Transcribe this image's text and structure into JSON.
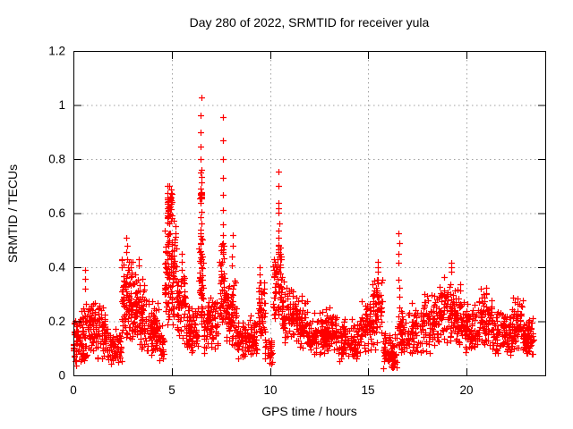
{
  "chart_data": {
    "type": "scatter",
    "title": "Day 280 of 2022, SRMTID for receiver yula",
    "xlabel": "GPS time / hours",
    "ylabel": "SRMTID / TECUs",
    "xlim": [
      0,
      24
    ],
    "ylim": [
      0,
      1.2
    ],
    "grid": true,
    "legend": "none",
    "marker": {
      "shape": "plus",
      "color": "#ff0000",
      "size": 7
    },
    "grid_color": "#a0a0a0",
    "axis_color": "#000000",
    "xticks": [
      {
        "v": 0,
        "label": "0"
      },
      {
        "v": 5,
        "label": "5"
      },
      {
        "v": 10,
        "label": "10"
      },
      {
        "v": 15,
        "label": "15"
      },
      {
        "v": 20,
        "label": "20"
      }
    ],
    "yticks": [
      {
        "v": 0.0,
        "label": "0"
      },
      {
        "v": 0.2,
        "label": "0.2"
      },
      {
        "v": 0.4,
        "label": "0.4"
      },
      {
        "v": 0.6,
        "label": "0.6"
      },
      {
        "v": 0.8,
        "label": "0.8"
      },
      {
        "v": 1.0,
        "label": "1"
      },
      {
        "v": 1.2,
        "label": "1.2"
      }
    ],
    "columns": [
      {
        "x": 0.61,
        "ys": [
          0.39,
          0.358,
          0.322,
          0.265,
          0.223
        ]
      },
      {
        "x": 2.72,
        "ys": [
          0.51,
          0.48,
          0.455,
          0.43
        ]
      },
      {
        "x": 3.32,
        "ys": [
          0.43,
          0.405
        ]
      },
      {
        "x": 5.52,
        "ys": [
          0.45,
          0.42,
          0.39
        ]
      },
      {
        "x": 6.48,
        "ys": [
          1.027,
          0.961,
          0.9,
          0.845,
          0.801,
          0.76,
          0.752,
          0.733,
          0.713,
          0.69,
          0.672,
          0.668,
          0.661,
          0.655,
          0.639,
          0.606,
          0.586,
          0.562,
          0.54,
          0.515,
          0.49,
          0.46,
          0.43
        ]
      },
      {
        "x": 7.6,
        "ys": [
          0.955,
          0.871,
          0.801,
          0.729,
          0.669,
          0.612,
          0.559,
          0.52,
          0.49,
          0.45,
          0.42
        ]
      },
      {
        "x": 8.1,
        "ys": [
          0.52,
          0.48,
          0.44,
          0.405
        ]
      },
      {
        "x": 9.45,
        "ys": [
          0.4,
          0.372,
          0.345,
          0.31,
          0.285
        ]
      },
      {
        "x": 10.43,
        "ys": [
          0.755,
          0.7,
          0.639,
          0.617,
          0.601,
          0.562,
          0.535,
          0.51,
          0.48,
          0.45
        ]
      },
      {
        "x": 15.5,
        "ys": [
          0.42,
          0.4,
          0.385
        ]
      },
      {
        "x": 16.55,
        "ys": [
          0.525,
          0.49,
          0.45,
          0.415,
          0.355,
          0.325,
          0.29,
          0.25
        ]
      },
      {
        "x": 19.2,
        "ys": [
          0.415,
          0.4,
          0.385
        ]
      },
      {
        "x": 21.0,
        "ys": [
          0.325,
          0.305
        ]
      }
    ],
    "clusters": [
      {
        "x0": 0.0,
        "x1": 0.7,
        "ylo": 0.03,
        "yhi": 0.26,
        "n": 85,
        "p": 1.2
      },
      {
        "x0": 0.7,
        "x1": 1.6,
        "ylo": 0.06,
        "yhi": 0.31,
        "n": 110,
        "p": 1.2
      },
      {
        "x0": 1.6,
        "x1": 2.45,
        "ylo": 0.03,
        "yhi": 0.18,
        "n": 75,
        "p": 1.1
      },
      {
        "x0": 2.45,
        "x1": 3.0,
        "ylo": 0.1,
        "yhi": 0.47,
        "n": 95,
        "p": 1.0
      },
      {
        "x0": 3.0,
        "x1": 3.6,
        "ylo": 0.09,
        "yhi": 0.41,
        "n": 85,
        "p": 1.1
      },
      {
        "x0": 3.6,
        "x1": 4.35,
        "ylo": 0.06,
        "yhi": 0.29,
        "n": 85,
        "p": 1.2
      },
      {
        "x0": 4.35,
        "x1": 4.62,
        "ylo": 0.05,
        "yhi": 0.2,
        "n": 25,
        "p": 1.2
      },
      {
        "x0": 4.62,
        "x1": 5.25,
        "ylo": 0.14,
        "yhi": 0.62,
        "n": 105,
        "p": 1.0
      },
      {
        "x0": 4.76,
        "x1": 5.04,
        "ylo": 0.55,
        "yhi": 0.705,
        "n": 42,
        "p": 0.9
      },
      {
        "x0": 5.25,
        "x1": 5.7,
        "ylo": 0.11,
        "yhi": 0.43,
        "n": 55,
        "p": 1.1
      },
      {
        "x0": 5.7,
        "x1": 6.33,
        "ylo": 0.08,
        "yhi": 0.3,
        "n": 75,
        "p": 1.2
      },
      {
        "x0": 6.38,
        "x1": 6.6,
        "ylo": 0.15,
        "yhi": 0.56,
        "n": 48,
        "p": 1.0
      },
      {
        "x0": 6.44,
        "x1": 6.54,
        "ylo": 0.65,
        "yhi": 0.685,
        "n": 10,
        "p": 1.0
      },
      {
        "x0": 6.6,
        "x1": 7.35,
        "ylo": 0.08,
        "yhi": 0.33,
        "n": 85,
        "p": 1.2
      },
      {
        "x0": 7.42,
        "x1": 7.68,
        "ylo": 0.14,
        "yhi": 0.55,
        "n": 42,
        "p": 1.0
      },
      {
        "x0": 7.68,
        "x1": 8.33,
        "ylo": 0.09,
        "yhi": 0.38,
        "n": 80,
        "p": 1.15
      },
      {
        "x0": 8.33,
        "x1": 9.35,
        "ylo": 0.06,
        "yhi": 0.23,
        "n": 105,
        "p": 1.2
      },
      {
        "x0": 9.38,
        "x1": 9.75,
        "ylo": 0.1,
        "yhi": 0.38,
        "n": 48,
        "p": 1.1
      },
      {
        "x0": 9.75,
        "x1": 10.12,
        "ylo": 0.03,
        "yhi": 0.16,
        "n": 30,
        "p": 1.2
      },
      {
        "x0": 10.15,
        "x1": 10.6,
        "ylo": 0.15,
        "yhi": 0.55,
        "n": 65,
        "p": 1.05
      },
      {
        "x0": 10.6,
        "x1": 11.35,
        "ylo": 0.11,
        "yhi": 0.35,
        "n": 80,
        "p": 1.15
      },
      {
        "x0": 11.35,
        "x1": 11.9,
        "ylo": 0.09,
        "yhi": 0.31,
        "n": 65,
        "p": 1.15
      },
      {
        "x0": 11.9,
        "x1": 12.8,
        "ylo": 0.07,
        "yhi": 0.24,
        "n": 90,
        "p": 1.2
      },
      {
        "x0": 12.8,
        "x1": 13.4,
        "ylo": 0.08,
        "yhi": 0.27,
        "n": 70,
        "p": 1.15
      },
      {
        "x0": 13.4,
        "x1": 14.6,
        "ylo": 0.05,
        "yhi": 0.22,
        "n": 110,
        "p": 1.2
      },
      {
        "x0": 14.6,
        "x1": 15.18,
        "ylo": 0.08,
        "yhi": 0.3,
        "n": 60,
        "p": 1.15
      },
      {
        "x0": 15.2,
        "x1": 15.7,
        "ylo": 0.09,
        "yhi": 0.42,
        "n": 60,
        "p": 1.1
      },
      {
        "x0": 15.75,
        "x1": 16.45,
        "ylo": 0.02,
        "yhi": 0.16,
        "n": 85,
        "p": 1.1
      },
      {
        "x0": 16.48,
        "x1": 16.66,
        "ylo": 0.06,
        "yhi": 0.26,
        "n": 22,
        "p": 1.1
      },
      {
        "x0": 16.66,
        "x1": 17.7,
        "ylo": 0.07,
        "yhi": 0.28,
        "n": 90,
        "p": 1.2
      },
      {
        "x0": 17.7,
        "x1": 18.6,
        "ylo": 0.08,
        "yhi": 0.34,
        "n": 90,
        "p": 1.1
      },
      {
        "x0": 18.6,
        "x1": 19.7,
        "ylo": 0.1,
        "yhi": 0.37,
        "n": 115,
        "p": 1.1
      },
      {
        "x0": 19.7,
        "x1": 20.6,
        "ylo": 0.08,
        "yhi": 0.28,
        "n": 85,
        "p": 1.2
      },
      {
        "x0": 20.6,
        "x1": 21.3,
        "ylo": 0.1,
        "yhi": 0.33,
        "n": 75,
        "p": 1.15
      },
      {
        "x0": 21.3,
        "x1": 22.3,
        "ylo": 0.07,
        "yhi": 0.24,
        "n": 95,
        "p": 1.2
      },
      {
        "x0": 22.3,
        "x1": 22.85,
        "ylo": 0.08,
        "yhi": 0.3,
        "n": 65,
        "p": 1.15
      },
      {
        "x0": 22.85,
        "x1": 23.4,
        "ylo": 0.07,
        "yhi": 0.22,
        "n": 65,
        "p": 1.2
      }
    ]
  }
}
